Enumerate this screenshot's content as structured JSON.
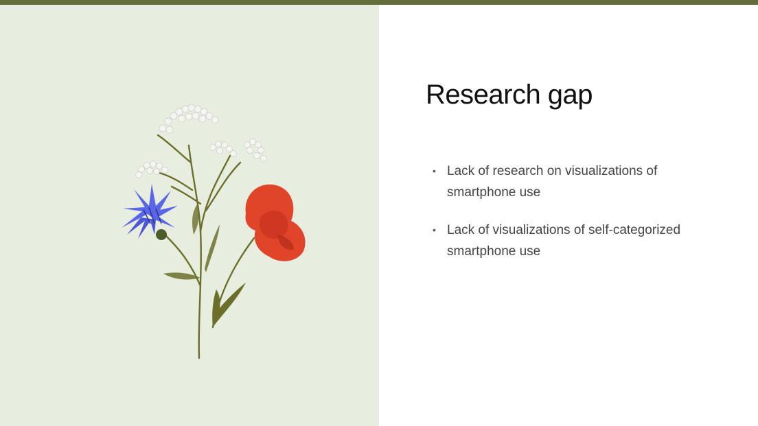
{
  "slide": {
    "title": "Research gap",
    "bullets": [
      "Lack of research on visualizations of smartphone use",
      "Lack of visualizations of self-categorized smartphone use"
    ]
  },
  "colors": {
    "top_bar": "#636e3b",
    "left_panel": "#e8eedf",
    "stem": "#6b6f2a",
    "cornflower": "#5a66e8",
    "poppy": "#e0452a",
    "yarrow": "#f4f4f2"
  },
  "illustration": {
    "flowers": [
      "yarrow",
      "cornflower",
      "poppy"
    ]
  }
}
